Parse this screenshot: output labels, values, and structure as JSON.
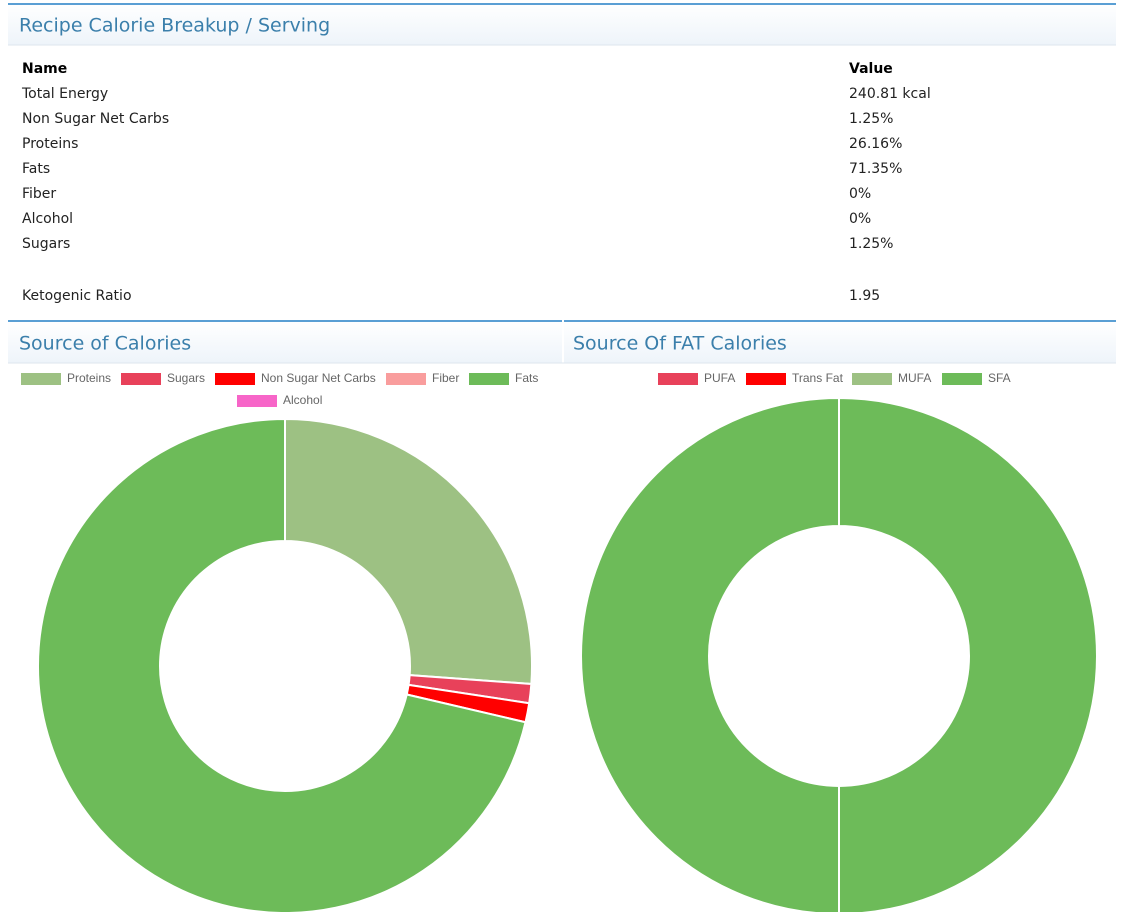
{
  "panel": {
    "title": "Recipe Calorie Breakup / Serving",
    "columns": [
      "Name",
      "Value"
    ],
    "rows": [
      [
        "Total Energy",
        "240.81 kcal"
      ],
      [
        "Non Sugar Net Carbs",
        "1.25%"
      ],
      [
        "Proteins",
        "26.16%"
      ],
      [
        "Fats",
        "71.35%"
      ],
      [
        "Fiber",
        "0%"
      ],
      [
        "Alcohol",
        "0%"
      ],
      [
        "Sugars",
        "1.25%"
      ]
    ],
    "extra": [
      "Ketogenic Ratio",
      "1.95"
    ]
  },
  "chart_data": [
    {
      "type": "doughnut",
      "title": "Source of Calories",
      "categories": [
        "Proteins",
        "Sugars",
        "Non Sugar Net Carbs",
        "Fiber",
        "Fats",
        "Alcohol"
      ],
      "values": [
        26.16,
        1.25,
        1.25,
        0,
        71.35,
        0
      ],
      "colors": [
        "#9dc183",
        "#e8415a",
        "#ff0000",
        "#f99d9d",
        "#6dbb59",
        "#f765c8"
      ]
    },
    {
      "type": "doughnut",
      "title": "Source Of FAT Calories",
      "categories": [
        "PUFA",
        "Trans Fat",
        "MUFA",
        "SFA"
      ],
      "values": [
        0,
        0,
        0,
        100
      ],
      "colors": [
        "#e8415a",
        "#ff0000",
        "#9dc183",
        "#6dbb59"
      ]
    }
  ]
}
